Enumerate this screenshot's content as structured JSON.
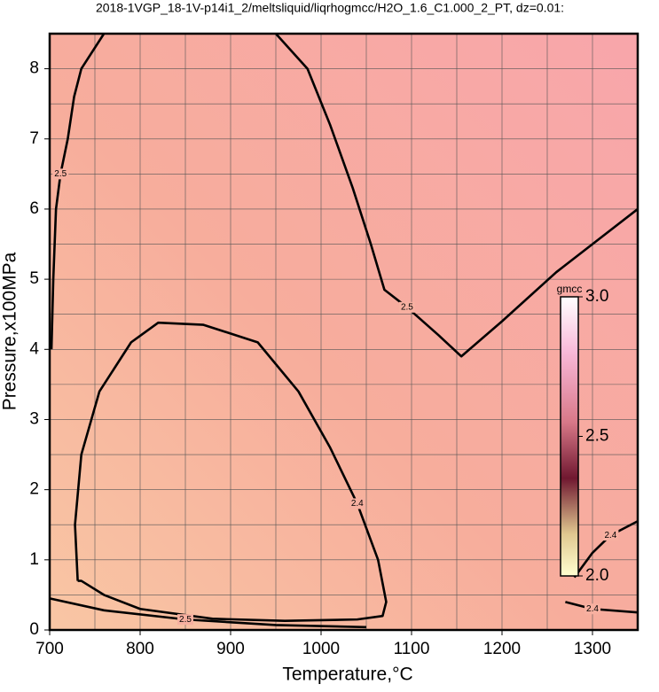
{
  "chart_data": {
    "type": "contour",
    "title": "2018-1VGP_18-1V-p14i1_2/meltsliquid/liqrhogmcc/H2O_1.6_C1.000_2_PT, dz=0.01:",
    "x_label": "Temperature,°C",
    "y_label": "Pressure,x100MPa",
    "xlim": [
      700,
      1350
    ],
    "ylim": [
      0,
      8.5
    ],
    "xticks": [
      700,
      800,
      900,
      1000,
      1100,
      1200,
      1300
    ],
    "yticks": [
      0,
      1,
      2,
      3,
      4,
      5,
      6,
      7,
      8
    ],
    "xgrid": [
      750,
      800,
      850,
      900,
      950,
      1000,
      1050,
      1100,
      1150,
      1200,
      1250,
      1300
    ],
    "ygrid": [
      0.5,
      1,
      1.5,
      2,
      2.5,
      3,
      3.5,
      4,
      4.5,
      5,
      5.5,
      6,
      6.5,
      7,
      7.5,
      8
    ],
    "grid": true,
    "contours": [
      {
        "level": 2.5,
        "x": [
          760,
          735,
          727,
          720,
          712,
          707,
          704,
          702
        ],
        "y": [
          8.5,
          8.0,
          7.6,
          7.0,
          6.5,
          6.0,
          5.0,
          4.0
        ]
      },
      {
        "level": 2.5,
        "x": [
          950,
          985,
          1010,
          1035,
          1055,
          1070,
          1095,
          1130,
          1155,
          1200,
          1260,
          1350
        ],
        "y": [
          8.5,
          8.0,
          7.2,
          6.3,
          5.5,
          4.85,
          4.6,
          4.2,
          3.9,
          4.4,
          5.1,
          6.0
        ]
      },
      {
        "level": 2.4,
        "x": [
          731,
          728,
          735,
          755,
          790,
          820,
          870,
          930,
          975,
          1010,
          1040,
          1063,
          1072,
          1068,
          1040,
          960,
          880,
          800,
          760,
          735,
          731
        ],
        "y": [
          0.7,
          1.5,
          2.5,
          3.4,
          4.1,
          4.38,
          4.35,
          4.1,
          3.4,
          2.6,
          1.8,
          1.0,
          0.4,
          0.2,
          0.15,
          0.13,
          0.16,
          0.3,
          0.5,
          0.7,
          0.7
        ]
      },
      {
        "level": 2.4,
        "x": [
          1280,
          1300,
          1320,
          1350
        ],
        "y": [
          0.75,
          1.1,
          1.35,
          1.55
        ]
      },
      {
        "level": 2.4,
        "x": [
          1270,
          1300,
          1350
        ],
        "y": [
          0.4,
          0.3,
          0.25
        ]
      },
      {
        "level": 2.5,
        "x": [
          700,
          760,
          850,
          950,
          1050
        ],
        "y": [
          0.45,
          0.28,
          0.15,
          0.07,
          0.04
        ]
      }
    ],
    "colorbar": {
      "label": "gmcc",
      "lim": [
        2,
        3
      ],
      "ticks": [
        {
          "value": 2,
          "label": "2.0"
        },
        2.5,
        {
          "value": 3,
          "label": "3.0"
        }
      ]
    }
  }
}
